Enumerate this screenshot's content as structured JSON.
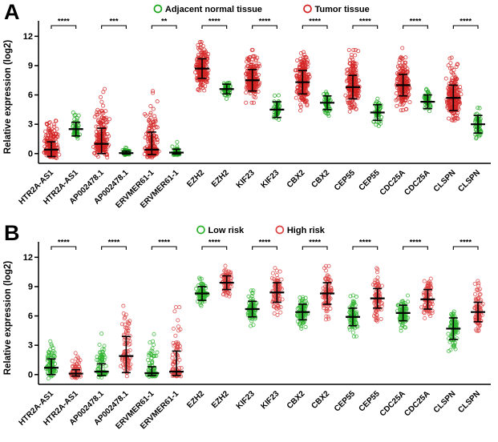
{
  "figure": {
    "panels": [
      {
        "letter": "A"
      },
      {
        "letter": "B"
      }
    ]
  },
  "chart_data": [
    {
      "panel": "A",
      "type": "scatter",
      "ylabel": "Relative expression (log2)",
      "ylim": [
        -1,
        12.6
      ],
      "yticks": [
        0,
        3,
        6,
        9,
        12
      ],
      "legend": [
        {
          "label": "Adjacent normal tissue",
          "color": "#1aa41a"
        },
        {
          "label": "Tumor tissue",
          "color": "#d32424"
        }
      ],
      "genes": [
        {
          "name": "HTR2A-AS1",
          "significance": "****",
          "columns": [
            {
              "series": "Tumor tissue",
              "color": "#d32424",
              "n": 220,
              "center": 0.4,
              "err_low": -0.3,
              "err_high": 1.2,
              "min": -0.6,
              "max": 3.6
            },
            {
              "series": "Adjacent normal tissue",
              "color": "#1aa41a",
              "n": 50,
              "center": 2.5,
              "err_low": 1.8,
              "err_high": 3.2,
              "min": 1.2,
              "max": 4.2
            }
          ]
        },
        {
          "name": "AP002478.1",
          "significance": "***",
          "columns": [
            {
              "series": "Tumor tissue",
              "color": "#d32424",
              "n": 220,
              "center": 1.0,
              "err_low": 0.0,
              "err_high": 2.6,
              "min": -0.4,
              "max": 6.6
            },
            {
              "series": "Adjacent normal tissue",
              "color": "#1aa41a",
              "n": 50,
              "center": 0.05,
              "err_low": -0.05,
              "err_high": 0.25,
              "min": -0.15,
              "max": 0.7
            }
          ]
        },
        {
          "name": "ERVMER61-1",
          "significance": "**",
          "columns": [
            {
              "series": "Tumor tissue",
              "color": "#d32424",
              "n": 220,
              "center": 0.4,
              "err_low": -0.1,
              "err_high": 2.2,
              "min": -0.4,
              "max": 6.4
            },
            {
              "series": "Adjacent normal tissue",
              "color": "#1aa41a",
              "n": 50,
              "center": 0.1,
              "err_low": -0.05,
              "err_high": 0.45,
              "min": -0.2,
              "max": 1.2
            }
          ]
        },
        {
          "name": "EZH2",
          "significance": "****",
          "columns": [
            {
              "series": "Tumor tissue",
              "color": "#d32424",
              "n": 220,
              "center": 8.7,
              "err_low": 7.7,
              "err_high": 9.7,
              "min": 6.3,
              "max": 11.4
            },
            {
              "series": "Adjacent normal tissue",
              "color": "#1aa41a",
              "n": 50,
              "center": 6.6,
              "err_low": 6.1,
              "err_high": 7.1,
              "min": 5.6,
              "max": 7.7
            }
          ]
        },
        {
          "name": "KIF23",
          "significance": "****",
          "columns": [
            {
              "series": "Tumor tissue",
              "color": "#d32424",
              "n": 220,
              "center": 7.5,
              "err_low": 6.4,
              "err_high": 8.6,
              "min": 5.2,
              "max": 10.6
            },
            {
              "series": "Adjacent normal tissue",
              "color": "#1aa41a",
              "n": 50,
              "center": 4.5,
              "err_low": 3.7,
              "err_high": 5.3,
              "min": 3.0,
              "max": 6.2
            }
          ]
        },
        {
          "name": "CBX2",
          "significance": "****",
          "columns": [
            {
              "series": "Tumor tissue",
              "color": "#d32424",
              "n": 220,
              "center": 7.3,
              "err_low": 6.1,
              "err_high": 8.5,
              "min": 4.4,
              "max": 10.9
            },
            {
              "series": "Adjacent normal tissue",
              "color": "#1aa41a",
              "n": 50,
              "center": 5.2,
              "err_low": 4.5,
              "err_high": 5.9,
              "min": 3.7,
              "max": 6.6
            }
          ]
        },
        {
          "name": "CEP55",
          "significance": "****",
          "columns": [
            {
              "series": "Tumor tissue",
              "color": "#d32424",
              "n": 220,
              "center": 6.8,
              "err_low": 5.6,
              "err_high": 8.0,
              "min": 4.3,
              "max": 10.6
            },
            {
              "series": "Adjacent normal tissue",
              "color": "#1aa41a",
              "n": 50,
              "center": 4.2,
              "err_low": 3.4,
              "err_high": 5.0,
              "min": 2.7,
              "max": 6.0
            }
          ]
        },
        {
          "name": "CDC25A",
          "significance": "****",
          "columns": [
            {
              "series": "Tumor tissue",
              "color": "#d32424",
              "n": 220,
              "center": 7.0,
              "err_low": 5.9,
              "err_high": 8.1,
              "min": 4.4,
              "max": 10.8
            },
            {
              "series": "Adjacent normal tissue",
              "color": "#1aa41a",
              "n": 50,
              "center": 5.3,
              "err_low": 4.6,
              "err_high": 6.0,
              "min": 4.0,
              "max": 6.6
            }
          ]
        },
        {
          "name": "CLSPN",
          "significance": "****",
          "columns": [
            {
              "series": "Tumor tissue",
              "color": "#d32424",
              "n": 220,
              "center": 5.7,
              "err_low": 4.4,
              "err_high": 7.0,
              "min": 3.3,
              "max": 9.9
            },
            {
              "series": "Adjacent normal tissue",
              "color": "#1aa41a",
              "n": 50,
              "center": 3.0,
              "err_low": 2.1,
              "err_high": 3.9,
              "min": 1.4,
              "max": 5.0
            }
          ]
        }
      ]
    },
    {
      "panel": "B",
      "type": "scatter",
      "ylabel": "Relative expression (log2)",
      "ylim": [
        -1,
        12.6
      ],
      "yticks": [
        0,
        3,
        6,
        9,
        12
      ],
      "legend": [
        {
          "label": "Low risk",
          "color": "#2eb22e"
        },
        {
          "label": "High risk",
          "color": "#dd4040"
        }
      ],
      "genes": [
        {
          "name": "HTR2A-AS1",
          "significance": "****",
          "columns": [
            {
              "series": "Low risk",
              "color": "#2eb22e",
              "n": 95,
              "center": 0.7,
              "err_low": 0.0,
              "err_high": 1.6,
              "min": -0.4,
              "max": 3.4
            },
            {
              "series": "High risk",
              "color": "#dd4040",
              "n": 95,
              "center": 0.1,
              "err_low": -0.15,
              "err_high": 0.5,
              "min": -0.4,
              "max": 2.2
            }
          ]
        },
        {
          "name": "AP002478.1",
          "significance": "****",
          "columns": [
            {
              "series": "Low risk",
              "color": "#2eb22e",
              "n": 95,
              "center": 0.3,
              "err_low": -0.1,
              "err_high": 1.1,
              "min": -0.3,
              "max": 4.6
            },
            {
              "series": "High risk",
              "color": "#dd4040",
              "n": 95,
              "center": 1.9,
              "err_low": 0.2,
              "err_high": 3.9,
              "min": -0.3,
              "max": 7.6
            }
          ]
        },
        {
          "name": "ERVMER61-1",
          "significance": "****",
          "columns": [
            {
              "series": "Low risk",
              "color": "#2eb22e",
              "n": 95,
              "center": 0.15,
              "err_low": -0.1,
              "err_high": 0.8,
              "min": -0.3,
              "max": 4.2
            },
            {
              "series": "High risk",
              "color": "#dd4040",
              "n": 95,
              "center": 0.3,
              "err_low": -0.1,
              "err_high": 2.4,
              "min": -0.3,
              "max": 6.9
            }
          ]
        },
        {
          "name": "EZH2",
          "significance": "****",
          "columns": [
            {
              "series": "Low risk",
              "color": "#2eb22e",
              "n": 95,
              "center": 8.3,
              "err_low": 7.6,
              "err_high": 9.0,
              "min": 6.7,
              "max": 9.9
            },
            {
              "series": "High risk",
              "color": "#dd4040",
              "n": 95,
              "center": 9.4,
              "err_low": 8.7,
              "err_high": 10.1,
              "min": 7.7,
              "max": 11.3
            }
          ]
        },
        {
          "name": "KIF23",
          "significance": "****",
          "columns": [
            {
              "series": "Low risk",
              "color": "#2eb22e",
              "n": 95,
              "center": 6.7,
              "err_low": 5.9,
              "err_high": 7.5,
              "min": 4.9,
              "max": 8.6
            },
            {
              "series": "High risk",
              "color": "#dd4040",
              "n": 95,
              "center": 8.4,
              "err_low": 7.4,
              "err_high": 9.4,
              "min": 5.9,
              "max": 10.9
            }
          ]
        },
        {
          "name": "CBX2",
          "significance": "****",
          "columns": [
            {
              "series": "Low risk",
              "color": "#2eb22e",
              "n": 95,
              "center": 6.4,
              "err_low": 5.6,
              "err_high": 7.2,
              "min": 4.5,
              "max": 8.3
            },
            {
              "series": "High risk",
              "color": "#dd4040",
              "n": 95,
              "center": 8.3,
              "err_low": 7.2,
              "err_high": 9.4,
              "min": 5.4,
              "max": 11.1
            }
          ]
        },
        {
          "name": "CEP55",
          "significance": "****",
          "columns": [
            {
              "series": "Low risk",
              "color": "#2eb22e",
              "n": 95,
              "center": 5.9,
              "err_low": 5.0,
              "err_high": 6.8,
              "min": 3.9,
              "max": 8.1
            },
            {
              "series": "High risk",
              "color": "#dd4040",
              "n": 95,
              "center": 7.8,
              "err_low": 6.8,
              "err_high": 8.8,
              "min": 5.4,
              "max": 10.9
            }
          ]
        },
        {
          "name": "CDC25A",
          "significance": "****",
          "columns": [
            {
              "series": "Low risk",
              "color": "#2eb22e",
              "n": 95,
              "center": 6.3,
              "err_low": 5.5,
              "err_high": 7.1,
              "min": 4.4,
              "max": 8.3
            },
            {
              "series": "High risk",
              "color": "#dd4040",
              "n": 95,
              "center": 7.7,
              "err_low": 6.7,
              "err_high": 8.7,
              "min": 5.4,
              "max": 10.4
            }
          ]
        },
        {
          "name": "CLSPN",
          "significance": "****",
          "columns": [
            {
              "series": "Low risk",
              "color": "#2eb22e",
              "n": 95,
              "center": 4.7,
              "err_low": 3.6,
              "err_high": 5.8,
              "min": 2.4,
              "max": 7.1
            },
            {
              "series": "High risk",
              "color": "#dd4040",
              "n": 95,
              "center": 6.4,
              "err_low": 5.4,
              "err_high": 7.4,
              "min": 3.9,
              "max": 9.6
            }
          ]
        }
      ]
    }
  ]
}
